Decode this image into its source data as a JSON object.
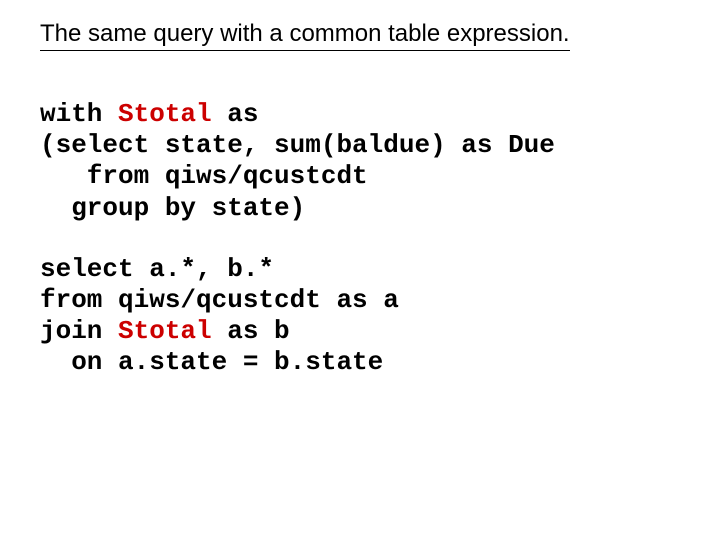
{
  "heading": "The same query with a common table expression.",
  "code": {
    "cte_name": "Stotal",
    "cte_color": "#cc0000",
    "b1": {
      "l1a": "with ",
      "l1b": " as",
      "l2": "(select state, sum(baldue) as Due",
      "l3": "   from qiws/qcustcdt",
      "l4": "  group by state)"
    },
    "b2": {
      "l1": "select a.*, b.*",
      "l2": "from qiws/qcustcdt as a",
      "l3a": "join ",
      "l3b": " as b",
      "l4": "  on a.state = b.state"
    }
  }
}
